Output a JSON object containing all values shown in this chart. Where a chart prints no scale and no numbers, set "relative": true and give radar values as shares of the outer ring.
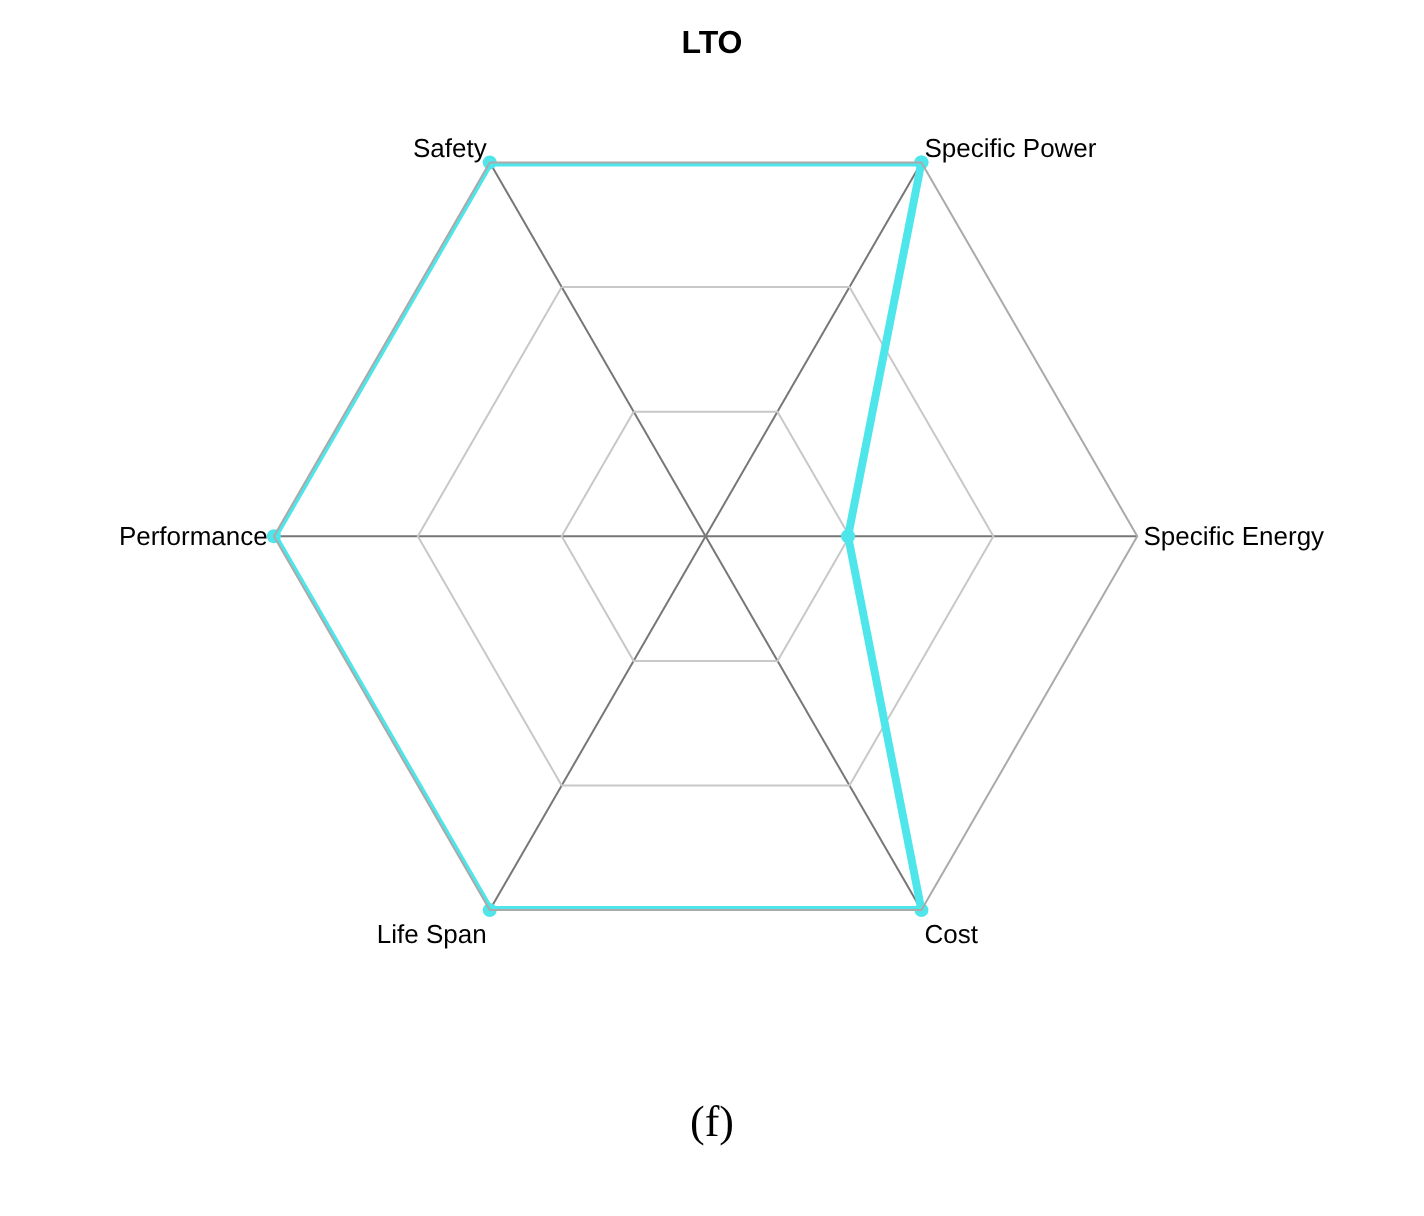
{
  "chart_data": {
    "type": "radar",
    "title": "LTO",
    "relative": true,
    "grid": true,
    "marker": "circle",
    "categories": [
      "Specific Power",
      "Specific Energy",
      "Cost",
      "Life Span",
      "Performance",
      "Safety"
    ],
    "series": [
      {
        "color": "#4ee6ea",
        "values": [
          1,
          0.33,
          1,
          1,
          1,
          1
        ]
      }
    ],
    "annotations": [
      "(f)"
    ]
  }
}
